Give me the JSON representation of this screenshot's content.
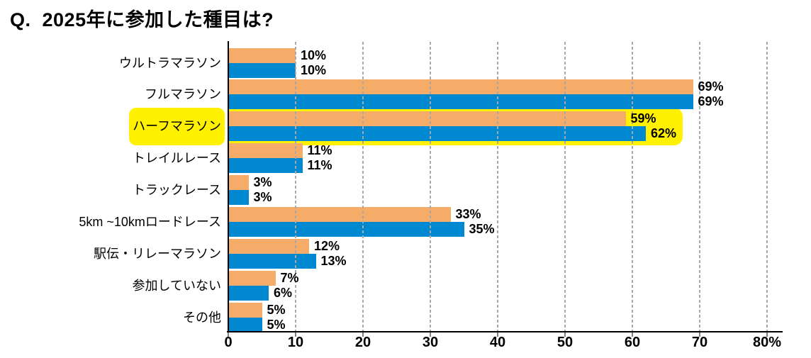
{
  "title": {
    "prefix": "Q.",
    "text": "2025年に参加した種目は?"
  },
  "chart_data": {
    "type": "bar",
    "orientation": "horizontal",
    "title": "Q. 2025年に参加した種目は?",
    "categories": [
      "ウルトラマラソン",
      "フルマラソン",
      "ハーフマラソン",
      "トレイルレース",
      "トラックレース",
      "5km ~10kmロードレース",
      "駅伝・リレーマラソン",
      "参加していない",
      "その他"
    ],
    "series": [
      {
        "name": "orange-series",
        "color": "#F5AC68",
        "values": [
          10,
          69,
          59,
          11,
          3,
          33,
          12,
          7,
          5
        ]
      },
      {
        "name": "blue-series",
        "color": "#0089D1",
        "values": [
          10,
          69,
          62,
          11,
          3,
          35,
          13,
          6,
          5
        ]
      }
    ],
    "value_suffix": "%",
    "xlim": [
      0,
      80
    ],
    "xtick_values": [
      0,
      10,
      20,
      30,
      40,
      50,
      60,
      70,
      80
    ],
    "xtick_labels": [
      "0",
      "10",
      "20",
      "30",
      "40",
      "50",
      "60",
      "70",
      "80%"
    ],
    "grid": {
      "axis": "x",
      "style": "dashed",
      "color": "#A8A8A8"
    },
    "highlight": {
      "category": "ハーフマラソン",
      "color": "#FFF100"
    }
  },
  "colors": {
    "bar_orange": "#F5AC68",
    "bar_blue": "#0089D1",
    "highlight_yellow": "#FFF100",
    "grid_gray": "#A8A8A8",
    "axis_black": "#000000",
    "background": "#FFFFFF",
    "text": "#000000"
  }
}
